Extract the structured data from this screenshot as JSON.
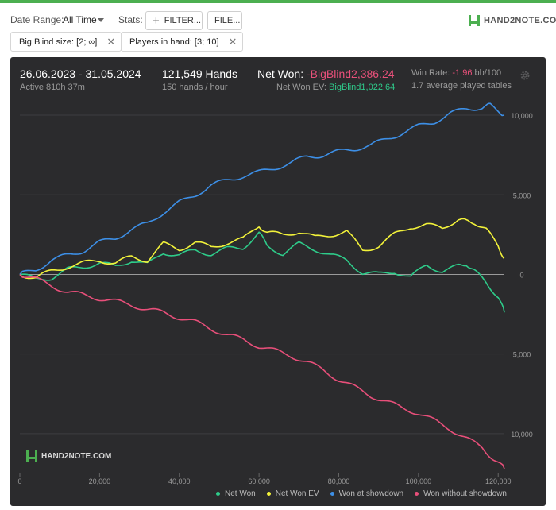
{
  "toolbar": {
    "date_range_label": "Date Range:",
    "date_range_value": "All Time",
    "stats_label": "Stats:",
    "filter_button": "FILTER...",
    "file_button": "FILE...",
    "logo_text": "HAND2NOTE.COM"
  },
  "filters": [
    {
      "label": "Big Blind size: [2; ∞]"
    },
    {
      "label": "Players in hand: [3; 10]"
    }
  ],
  "summary": {
    "date_range": "26.06.2023 - 31.05.2024",
    "active": "Active 810h 37m",
    "hands": "121,549 Hands",
    "hands_per_hour": "150 hands / hour",
    "net_won_label": "Net Won:",
    "net_won_value": "-BigBlind2,386.24",
    "net_won_ev_label": "Net Won  EV:",
    "net_won_ev_value": "BigBlind1,022.64",
    "win_rate_label": "Win Rate:",
    "win_rate_value": "-1.96",
    "win_rate_unit": "bb/100",
    "avg_tables": "1.7 average played tables"
  },
  "watermark": "HAND2NOTE.COM",
  "colors": {
    "net_won": "#2ecc8a",
    "net_won_ev": "#f2f23a",
    "won_at_showdown": "#3d8fe6",
    "won_without_showdown": "#e84f7a",
    "panel_bg": "#2b2b2d",
    "accent": "#4caf50"
  },
  "chart_data": {
    "type": "line",
    "x_ticks": [
      0,
      20000,
      40000,
      60000,
      80000,
      100000,
      120000
    ],
    "x_tick_labels": [
      "0",
      "20,000",
      "40,000",
      "60,000",
      "80,000",
      "100,000",
      "120,000"
    ],
    "xlim": [
      0,
      121549
    ],
    "y_ticks": [
      10000,
      5000,
      0,
      -5000,
      -10000
    ],
    "y_tick_labels": [
      "10,000",
      "5,000",
      "0",
      "5,000",
      "10,000"
    ],
    "ylim": [
      -12500,
      11000
    ],
    "grid": true,
    "legend_position": "bottom",
    "series": [
      {
        "name": "Net Won",
        "color_key": "net_won",
        "points": [
          [
            0,
            0
          ],
          [
            4000,
            -300
          ],
          [
            8000,
            -200
          ],
          [
            12000,
            300
          ],
          [
            16000,
            500
          ],
          [
            20000,
            700
          ],
          [
            24000,
            500
          ],
          [
            28000,
            900
          ],
          [
            32000,
            600
          ],
          [
            36000,
            1400
          ],
          [
            40000,
            1200
          ],
          [
            44000,
            1500
          ],
          [
            48000,
            1300
          ],
          [
            52000,
            1600
          ],
          [
            56000,
            1700
          ],
          [
            60000,
            2600
          ],
          [
            62000,
            1800
          ],
          [
            66000,
            1300
          ],
          [
            70000,
            1900
          ],
          [
            74000,
            1600
          ],
          [
            78000,
            1200
          ],
          [
            82000,
            900
          ],
          [
            86000,
            100
          ],
          [
            90000,
            0
          ],
          [
            94000,
            200
          ],
          [
            98000,
            -200
          ],
          [
            102000,
            600
          ],
          [
            106000,
            200
          ],
          [
            110000,
            500
          ],
          [
            112000,
            700
          ],
          [
            114000,
            200
          ],
          [
            117000,
            -500
          ],
          [
            120000,
            -1400
          ],
          [
            121549,
            -2386
          ]
        ]
      },
      {
        "name": "Net Won  EV",
        "color_key": "net_won_ev",
        "points": [
          [
            0,
            0
          ],
          [
            4000,
            -200
          ],
          [
            8000,
            200
          ],
          [
            12000,
            500
          ],
          [
            16000,
            700
          ],
          [
            20000,
            900
          ],
          [
            24000,
            700
          ],
          [
            28000,
            1100
          ],
          [
            32000,
            900
          ],
          [
            36000,
            1900
          ],
          [
            40000,
            1600
          ],
          [
            44000,
            2000
          ],
          [
            48000,
            1700
          ],
          [
            52000,
            2000
          ],
          [
            56000,
            2200
          ],
          [
            60000,
            3100
          ],
          [
            62000,
            2600
          ],
          [
            66000,
            2500
          ],
          [
            70000,
            2700
          ],
          [
            74000,
            2300
          ],
          [
            78000,
            2500
          ],
          [
            82000,
            2700
          ],
          [
            86000,
            1500
          ],
          [
            90000,
            1800
          ],
          [
            94000,
            2500
          ],
          [
            98000,
            3000
          ],
          [
            102000,
            3100
          ],
          [
            106000,
            2900
          ],
          [
            110000,
            3500
          ],
          [
            112000,
            3300
          ],
          [
            114000,
            3300
          ],
          [
            117000,
            2800
          ],
          [
            120000,
            1800
          ],
          [
            121549,
            1023
          ]
        ]
      },
      {
        "name": "Won at showdown",
        "color_key": "won_at_showdown",
        "points": [
          [
            0,
            0
          ],
          [
            4000,
            300
          ],
          [
            8000,
            900
          ],
          [
            12000,
            1200
          ],
          [
            16000,
            1500
          ],
          [
            20000,
            2000
          ],
          [
            24000,
            2300
          ],
          [
            28000,
            2800
          ],
          [
            32000,
            3200
          ],
          [
            36000,
            3900
          ],
          [
            40000,
            4500
          ],
          [
            44000,
            5000
          ],
          [
            48000,
            5600
          ],
          [
            52000,
            5900
          ],
          [
            56000,
            6200
          ],
          [
            60000,
            6400
          ],
          [
            64000,
            6700
          ],
          [
            68000,
            7000
          ],
          [
            72000,
            7400
          ],
          [
            76000,
            7500
          ],
          [
            80000,
            7700
          ],
          [
            84000,
            7900
          ],
          [
            88000,
            8100
          ],
          [
            92000,
            8500
          ],
          [
            96000,
            8900
          ],
          [
            100000,
            9300
          ],
          [
            104000,
            9600
          ],
          [
            108000,
            10100
          ],
          [
            112000,
            10400
          ],
          [
            116000,
            10500
          ],
          [
            118000,
            10600
          ],
          [
            121549,
            10000
          ]
        ]
      },
      {
        "name": "Won without showdown",
        "color_key": "won_without_showdown",
        "points": [
          [
            0,
            0
          ],
          [
            4000,
            -300
          ],
          [
            8000,
            -700
          ],
          [
            12000,
            -1100
          ],
          [
            16000,
            -1300
          ],
          [
            20000,
            -1500
          ],
          [
            24000,
            -1700
          ],
          [
            28000,
            -1900
          ],
          [
            32000,
            -2200
          ],
          [
            36000,
            -2400
          ],
          [
            40000,
            -2700
          ],
          [
            44000,
            -3000
          ],
          [
            48000,
            -3400
          ],
          [
            52000,
            -3800
          ],
          [
            56000,
            -4100
          ],
          [
            60000,
            -4500
          ],
          [
            64000,
            -4800
          ],
          [
            68000,
            -5100
          ],
          [
            72000,
            -5500
          ],
          [
            76000,
            -6000
          ],
          [
            80000,
            -6600
          ],
          [
            84000,
            -7100
          ],
          [
            88000,
            -7600
          ],
          [
            92000,
            -8000
          ],
          [
            96000,
            -8400
          ],
          [
            100000,
            -8700
          ],
          [
            104000,
            -9200
          ],
          [
            108000,
            -9700
          ],
          [
            112000,
            -10300
          ],
          [
            116000,
            -10900
          ],
          [
            119000,
            -11600
          ],
          [
            121549,
            -12200
          ]
        ]
      }
    ]
  }
}
